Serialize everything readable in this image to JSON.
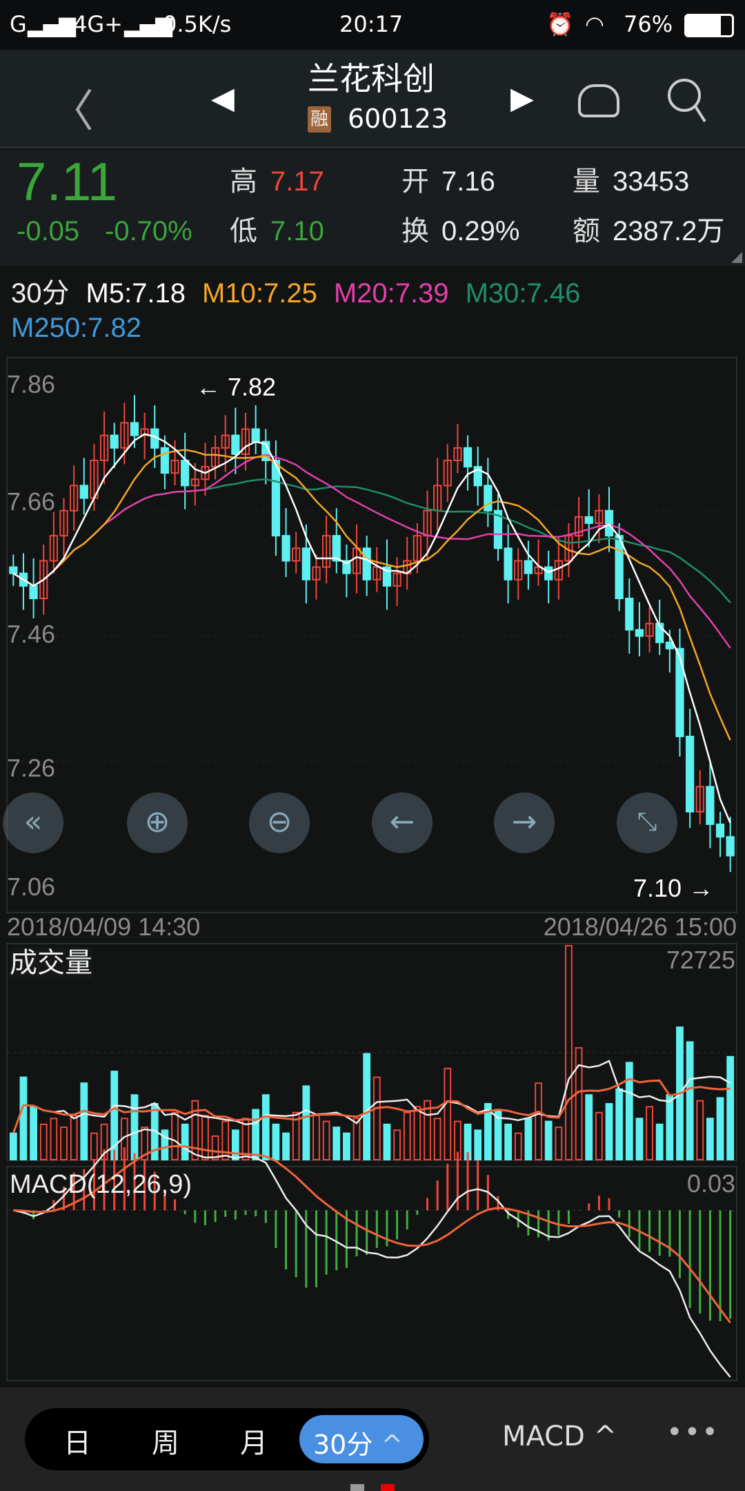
{
  "status_bar": {
    "carrier1": "G",
    "carrier2": "4G+",
    "speed": "0.5K/s",
    "time": "20:17",
    "battery": "76%"
  },
  "header": {
    "name": "兰花科创",
    "badge": "融",
    "code": "600123",
    "icons": [
      "back-icon",
      "prev-stock-icon",
      "next-stock-icon",
      "robot-icon",
      "search-icon"
    ]
  },
  "quote": {
    "price": "7.11",
    "change": "-0.05",
    "change_pct": "-0.70%",
    "high_label": "高",
    "high": "7.17",
    "low_label": "低",
    "low": "7.10",
    "open_label": "开",
    "open": "7.16",
    "turnover_label": "换",
    "turnover": "0.29%",
    "volume_label": "量",
    "volume": "33453",
    "amount_label": "额",
    "amount": "2387.2万"
  },
  "ma_legend": {
    "period": "30分",
    "m5": "M5:7.18",
    "m10": "M10:7.25",
    "m20": "M20:7.39",
    "m30": "M30:7.46",
    "m250": "M250:7.82"
  },
  "colors": {
    "up": "#f0463a",
    "down": "#5ef0f0",
    "ma5": "#ffffff",
    "ma10": "#f5a623",
    "ma20": "#e33fae",
    "ma30": "#1e8e6c",
    "ma250": "#3d9be0",
    "active": "#4a90e2"
  },
  "chart_data": [
    {
      "type": "candlestick",
      "yticks": [
        "7.86",
        "7.66",
        "7.46",
        "7.26",
        "7.06"
      ],
      "ylim": [
        7.06,
        7.86
      ],
      "max_label": "7.82",
      "min_label": "7.10",
      "start_label": "2018/04/09 14:30",
      "end_label": "2018/04/26 15:00",
      "close": [
        7.56,
        7.54,
        7.52,
        7.58,
        7.62,
        7.66,
        7.7,
        7.68,
        7.74,
        7.78,
        7.76,
        7.8,
        7.78,
        7.79,
        7.76,
        7.72,
        7.74,
        7.7,
        7.71,
        7.73,
        7.76,
        7.78,
        7.75,
        7.79,
        7.77,
        7.74,
        7.62,
        7.58,
        7.6,
        7.55,
        7.57,
        7.62,
        7.58,
        7.56,
        7.6,
        7.55,
        7.57,
        7.54,
        7.56,
        7.58,
        7.62,
        7.66,
        7.7,
        7.74,
        7.76,
        7.73,
        7.7,
        7.66,
        7.6,
        7.55,
        7.58,
        7.56,
        7.57,
        7.55,
        7.58,
        7.62,
        7.65,
        7.64,
        7.66,
        7.62,
        7.52,
        7.47,
        7.46,
        7.48,
        7.45,
        7.44,
        7.3,
        7.18,
        7.22,
        7.16,
        7.14,
        7.11
      ]
    },
    {
      "type": "bar",
      "title": "成交量",
      "max_label": "72725",
      "ylim": [
        0,
        72725
      ],
      "values": [
        9000,
        28000,
        18000,
        12000,
        14000,
        11000,
        15000,
        26000,
        9000,
        12000,
        30000,
        14000,
        22000,
        11000,
        19000,
        10000,
        16000,
        12000,
        20000,
        15000,
        8000,
        13000,
        10000,
        14000,
        17000,
        22000,
        12000,
        9000,
        16000,
        25000,
        15000,
        13000,
        11000,
        9000,
        14000,
        36000,
        28000,
        12000,
        10000,
        16000,
        18000,
        20000,
        14000,
        31000,
        13000,
        12000,
        10000,
        19000,
        17000,
        12000,
        9000,
        14000,
        26000,
        13000,
        11000,
        72725,
        38000,
        22000,
        16000,
        19000,
        24000,
        33000,
        14000,
        18000,
        12000,
        22000,
        45000,
        40000,
        20000,
        14000,
        21000,
        35000
      ]
    },
    {
      "type": "macd",
      "title": "MACD(12,26,9)",
      "max_label": "0.03"
    }
  ],
  "bottom": {
    "tabs": [
      "日",
      "周",
      "月"
    ],
    "active": "30分",
    "indicator": "MACD"
  }
}
